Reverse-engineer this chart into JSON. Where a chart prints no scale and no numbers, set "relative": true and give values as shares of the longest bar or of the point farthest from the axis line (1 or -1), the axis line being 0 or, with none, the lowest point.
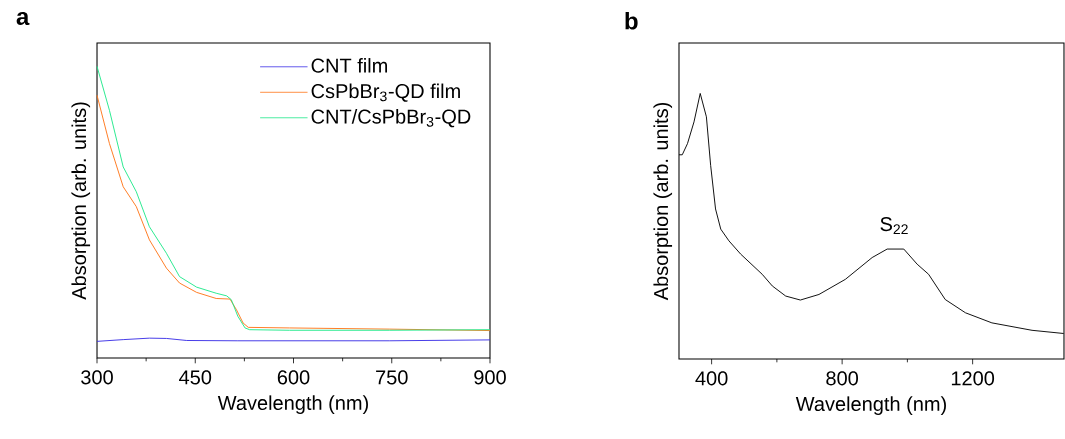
{
  "chart_data": [
    {
      "type": "line",
      "title": "a",
      "xlabel": "Wavelength (nm)",
      "ylabel": "Absorption (arb. units)",
      "relative": true,
      "legend": "top right",
      "xlim": [
        300,
        900
      ],
      "xticks": [
        300,
        450,
        600,
        750,
        900
      ],
      "series": [
        {
          "name": "CNT film",
          "color": "#3a2fe6",
          "x": [
            300,
            340,
            380,
            406,
            437,
            515,
            600,
            747,
            900
          ],
          "values": [
            0.057,
            0.063,
            0.068,
            0.067,
            0.06,
            0.059,
            0.059,
            0.059,
            0.062
          ]
        },
        {
          "name": "CsPbBr$_{3}$-QD film",
          "color": "#ff7417",
          "x": [
            300,
            319,
            340,
            360,
            380,
            406,
            426,
            452,
            482,
            503,
            513,
            523,
            531,
            594,
            747,
            900
          ],
          "values": [
            0.901,
            0.735,
            0.587,
            0.519,
            0.405,
            0.308,
            0.257,
            0.225,
            0.204,
            0.202,
            0.165,
            0.12,
            0.105,
            0.103,
            0.099,
            0.094
          ]
        },
        {
          "name": "CNT/CsPbBr$_{3}$-QD",
          "color": "#1ee88a",
          "x": [
            300,
            319,
            340,
            360,
            380,
            406,
            426,
            452,
            482,
            498,
            505,
            515,
            526,
            533,
            594,
            747,
            900
          ],
          "values": [
            1.0,
            0.849,
            0.655,
            0.57,
            0.45,
            0.359,
            0.279,
            0.243,
            0.222,
            0.213,
            0.2,
            0.143,
            0.103,
            0.097,
            0.095,
            0.095,
            0.097
          ]
        }
      ]
    },
    {
      "type": "line",
      "title": "b",
      "xlabel": "Wavelength (nm)",
      "ylabel": "Absorption (arb. units)",
      "relative": true,
      "xlim": [
        300,
        1480
      ],
      "xticks": [
        400,
        800,
        1200
      ],
      "annotations": [
        {
          "text": "S$_{22}$",
          "x": 960,
          "y": 0.414
        }
      ],
      "series": [
        {
          "color": "#000000",
          "x": [
            300,
            310,
            326,
            346,
            365,
            384,
            397,
            412,
            428,
            453,
            489,
            555,
            586,
            627,
            672,
            729,
            810,
            892,
            938,
            989,
            1030,
            1065,
            1116,
            1178,
            1259,
            1382,
            1479
          ],
          "values": [
            0.769,
            0.769,
            0.811,
            0.893,
            1.0,
            0.912,
            0.729,
            0.565,
            0.489,
            0.445,
            0.395,
            0.319,
            0.275,
            0.237,
            0.222,
            0.243,
            0.3,
            0.382,
            0.414,
            0.414,
            0.357,
            0.319,
            0.224,
            0.174,
            0.136,
            0.108,
            0.096
          ]
        }
      ]
    }
  ]
}
